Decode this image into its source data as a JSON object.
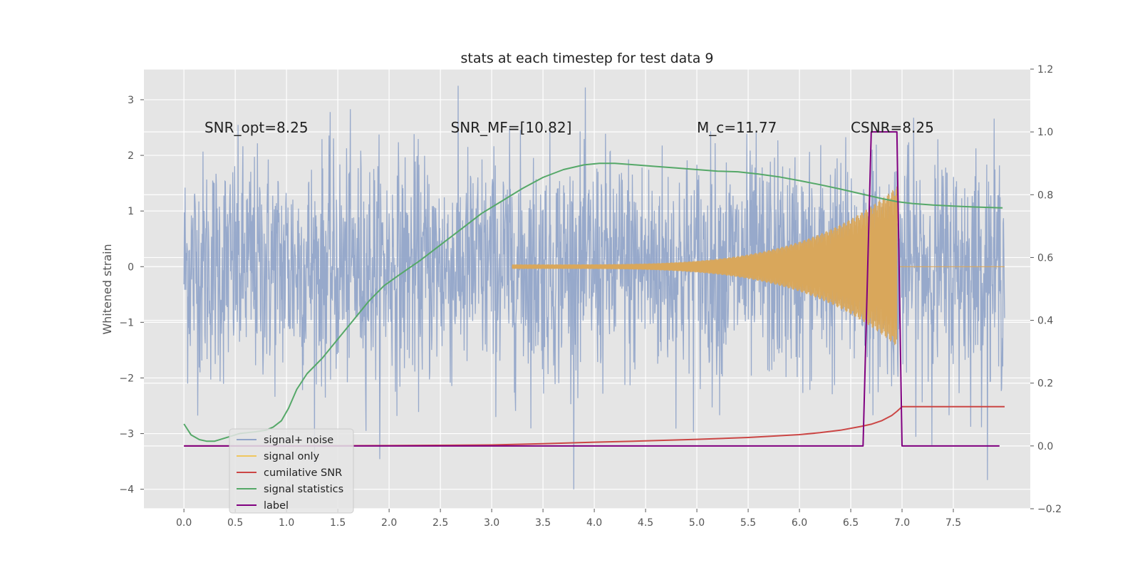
{
  "chart_data": {
    "type": "line",
    "title": "stats at each timestep for test data 9",
    "ylabel": "Whitened strain",
    "y2label": "",
    "xlim": [
      -0.39,
      8.25
    ],
    "ylim": [
      -4.35,
      3.55
    ],
    "y2lim": [
      -0.2,
      1.2
    ],
    "xticks": [
      "0.0",
      "0.5",
      "1.0",
      "1.5",
      "2.0",
      "2.5",
      "3.0",
      "3.5",
      "4.0",
      "4.5",
      "5.0",
      "5.5",
      "6.0",
      "6.5",
      "7.0",
      "7.5"
    ],
    "yticks": [
      "3",
      "2",
      "1",
      "0",
      "−1",
      "−2",
      "−3",
      "−4"
    ],
    "y2ticks": [
      "1.2",
      "1.0",
      "0.8",
      "0.6",
      "0.4",
      "0.2",
      "0.0",
      "−0.2"
    ],
    "grid": true,
    "legend_position": "lower-left",
    "annotations": [
      {
        "text": "SNR_opt=8.25",
        "x": 0.2,
        "y": 2.5
      },
      {
        "text": "SNR_MF=[10.82]",
        "x": 2.6,
        "y": 2.5
      },
      {
        "text": "M_c=11.77",
        "x": 5.0,
        "y": 2.5
      },
      {
        "text": "CSNR=8.25",
        "x": 6.5,
        "y": 2.5
      }
    ],
    "series": [
      {
        "name": "signal+ noise",
        "axis": "left",
        "color": "#92a5c9",
        "kind": "noise",
        "x_start": 0.0,
        "x_end": 8.0,
        "y_range": [
          -4.0,
          3.25
        ]
      },
      {
        "name": "signal only",
        "axis": "left",
        "color": "#d9a75b",
        "kind": "chirp",
        "x_start": 3.2,
        "x_end": 6.95,
        "amplitude_end": 1.4
      },
      {
        "name": "cumilative SNR",
        "axis": "right",
        "color": "#cb4645",
        "x": [
          0.0,
          1.0,
          2.0,
          3.0,
          3.5,
          4.0,
          4.5,
          5.0,
          5.5,
          6.0,
          6.2,
          6.4,
          6.6,
          6.7,
          6.8,
          6.9,
          6.95,
          7.0,
          7.5,
          8.0
        ],
        "y": [
          0.0,
          0.0,
          0.001,
          0.003,
          0.007,
          0.012,
          0.016,
          0.021,
          0.027,
          0.036,
          0.042,
          0.05,
          0.062,
          0.069,
          0.08,
          0.097,
          0.11,
          0.125,
          0.125,
          0.125
        ]
      },
      {
        "name": "signal statistics",
        "axis": "right",
        "color": "#55a868",
        "x": [
          0.0,
          0.07,
          0.15,
          0.22,
          0.3,
          0.4,
          0.55,
          0.7,
          0.8,
          0.87,
          0.95,
          1.02,
          1.1,
          1.2,
          1.35,
          1.5,
          1.65,
          1.8,
          1.95,
          2.1,
          2.3,
          2.5,
          2.7,
          2.9,
          3.1,
          3.3,
          3.5,
          3.7,
          3.9,
          4.05,
          4.2,
          4.4,
          4.6,
          4.8,
          5.0,
          5.2,
          5.4,
          5.6,
          5.8,
          6.0,
          6.2,
          6.4,
          6.6,
          6.8,
          6.95,
          7.1,
          7.3,
          7.5,
          7.7,
          7.9,
          7.98
        ],
        "y": [
          0.07,
          0.035,
          0.02,
          0.015,
          0.015,
          0.025,
          0.04,
          0.045,
          0.05,
          0.06,
          0.08,
          0.12,
          0.18,
          0.23,
          0.28,
          0.34,
          0.4,
          0.46,
          0.51,
          0.545,
          0.59,
          0.64,
          0.69,
          0.74,
          0.78,
          0.82,
          0.855,
          0.88,
          0.895,
          0.9,
          0.9,
          0.895,
          0.89,
          0.885,
          0.88,
          0.875,
          0.873,
          0.866,
          0.857,
          0.845,
          0.832,
          0.818,
          0.803,
          0.788,
          0.778,
          0.772,
          0.767,
          0.764,
          0.761,
          0.759,
          0.758
        ]
      },
      {
        "name": "label",
        "axis": "right",
        "color": "#800080",
        "x": [
          0.0,
          6.62,
          6.7,
          6.95,
          7.0,
          7.95
        ],
        "y": [
          0.0,
          0.0,
          1.0,
          1.0,
          0.0,
          0.0
        ]
      }
    ],
    "legend": [
      {
        "label": "signal+ noise",
        "color": "#92a5c9"
      },
      {
        "label": "signal only",
        "color": "#f0c75e"
      },
      {
        "label": "cumilative SNR",
        "color": "#cb4645"
      },
      {
        "label": "signal statistics",
        "color": "#55a868"
      },
      {
        "label": "label",
        "color": "#800080"
      }
    ],
    "colors": {
      "plot_background": "#e5e5e5",
      "grid": "#ffffff"
    }
  }
}
